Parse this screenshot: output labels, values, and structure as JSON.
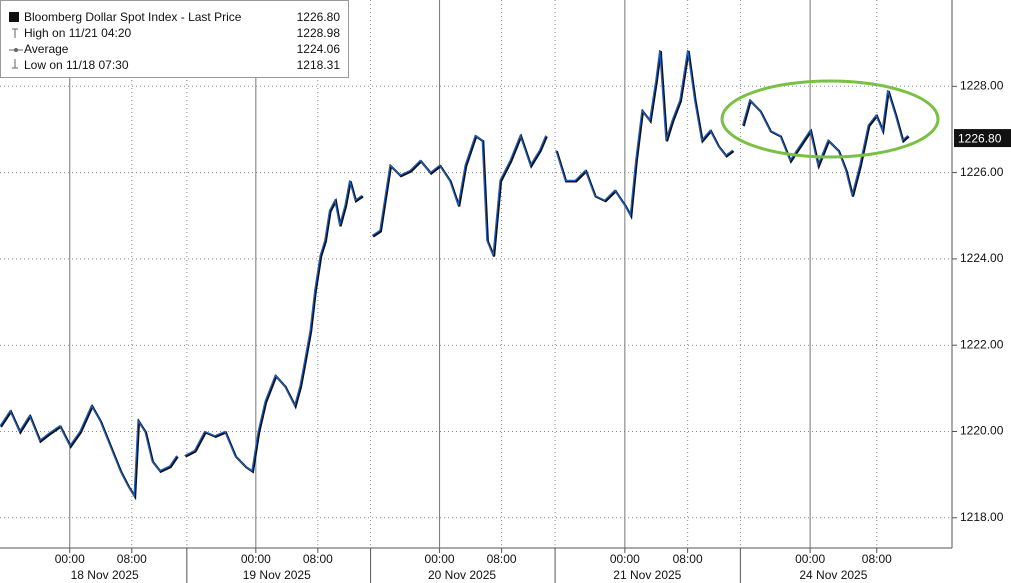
{
  "chart_data": {
    "type": "line",
    "legend_entries": {
      "names": [
        "Bloomberg Dollar Spot Index - Last Price",
        "High on 11/21 04:20",
        "Average",
        "Low on 11/18 07:30"
      ],
      "values": [
        1226.8,
        1228.98,
        1224.06,
        1218.31
      ],
      "value_labels": [
        "1226.80",
        "1228.98",
        "1224.06",
        "1218.31"
      ]
    },
    "x": [
      -9.0,
      -7.7,
      -6.5,
      -5.2,
      -3.9,
      -2.6,
      -1.3,
      0,
      1.3,
      2.8,
      3.9,
      5.2,
      6.5,
      7.5,
      8.3,
      8.8,
      9.7,
      10.6,
      11.6,
      12.9,
      13.8,
      14.5,
      14.8,
      16.1,
      17.4,
      18.7,
      20.0,
      21.3,
      22.6,
      23.5,
      24.3,
      25.2,
      26.5,
      27.7,
      29.0,
      29.7,
      30.3,
      31.0,
      31.6,
      32.3,
      32.9,
      33.5,
      34.2,
      34.8,
      35.5,
      36.1,
      36.8,
      37.7,
      38.4,
      39.0,
      40.0,
      41.3,
      42.6,
      43.9,
      45.2,
      46.5,
      47.7,
      49.0,
      50.1,
      51.0,
      52.3,
      53.2,
      53.8,
      54.6,
      55.5,
      56.8,
      58.1,
      59.4,
      60.6,
      61.4,
      62.6,
      62.7,
      63.9,
      65.2,
      66.5,
      67.7,
      69.0,
      70.3,
      71.6,
      72.3,
      73.0,
      73.8,
      74.8,
      75.6,
      76.1,
      76.9,
      77.7,
      78.7,
      79.7,
      80.6,
      81.5,
      82.6,
      83.6,
      84.6,
      85.5,
      86.5,
      86.8,
      87.7,
      89.0,
      90.3,
      91.6,
      92.9,
      94.2,
      95.5,
      96.5,
      97.8,
      99.1,
      100.1,
      100.9,
      101.9,
      103.0,
      104.0,
      104.8,
      105.5,
      106.5,
      107.4,
      108.1
    ],
    "series": [
      {
        "color": "#1f5fbf",
        "values": [
          1220.13,
          1220.48,
          1220.0,
          1220.37,
          1219.79,
          1219.97,
          1220.13,
          1219.67,
          1220.0,
          1220.6,
          1220.25,
          1219.67,
          1219.09,
          1218.74,
          1218.51,
          1220.25,
          1220.0,
          1219.32,
          1219.09,
          1219.2,
          1219.44,
          null,
          1219.44,
          1219.56,
          1220.0,
          1219.9,
          1220.0,
          1219.44,
          1219.2,
          1219.09,
          1220.0,
          1220.7,
          1221.3,
          1221.06,
          1220.6,
          1221.06,
          1221.64,
          1222.34,
          1223.27,
          1224.08,
          1224.43,
          1225.12,
          1225.36,
          1224.78,
          1225.24,
          1225.82,
          1225.36,
          1225.47,
          null,
          1224.54,
          1224.66,
          1226.17,
          1225.94,
          1226.05,
          1226.28,
          1226.0,
          1226.17,
          1225.82,
          1225.24,
          1226.17,
          1226.86,
          1226.75,
          1224.43,
          1224.08,
          1225.82,
          1226.28,
          1226.86,
          1226.17,
          1226.52,
          1226.86,
          null,
          1226.52,
          1225.82,
          1225.82,
          1226.05,
          1225.47,
          1225.36,
          1225.59,
          1225.24,
          1225.01,
          1226.28,
          1227.44,
          1227.21,
          1228.14,
          1228.84,
          1226.75,
          1227.21,
          1227.68,
          1228.84,
          1227.68,
          1226.75,
          1226.98,
          1226.63,
          1226.4,
          1226.52,
          null,
          1227.1,
          1227.68,
          1227.44,
          1226.98,
          1226.86,
          1226.28,
          1226.63,
          1226.98,
          1226.17,
          1226.75,
          1226.52,
          1226.05,
          1225.47,
          1226.17,
          1227.1,
          1227.33,
          1226.98,
          1227.91,
          1227.33,
          1226.75,
          1226.86
        ]
      }
    ],
    "xlim": [
      -9.0,
      113.8
    ],
    "xticks": [
      {
        "value": 0,
        "label": "00:00"
      },
      {
        "value": 8.0,
        "label": "08:00"
      },
      {
        "value": 24.0,
        "label": "00:00"
      },
      {
        "value": 32.0,
        "label": "08:00"
      },
      {
        "value": 47.7,
        "label": "00:00"
      },
      {
        "value": 55.7,
        "label": "08:00"
      },
      {
        "value": 71.6,
        "label": "00:00"
      },
      {
        "value": 79.7,
        "label": "08:00"
      },
      {
        "value": 95.5,
        "label": "00:00"
      },
      {
        "value": 104.1,
        "label": "08:00"
      }
    ],
    "x_day_labels": [
      {
        "value": 4.5,
        "label": "18 Nov 2025"
      },
      {
        "value": 26.7,
        "label": "19 Nov 2025"
      },
      {
        "value": 50.6,
        "label": "20 Nov 2025"
      },
      {
        "value": 74.5,
        "label": "21 Nov 2025"
      },
      {
        "value": 98.5,
        "label": "24 Nov 2025"
      }
    ],
    "x_day_breaks": [
      15.1,
      38.8,
      62.6,
      86.5
    ],
    "ylim": [
      1217.3,
      1230
    ],
    "yticks": [
      {
        "value": 1218,
        "label": "1218.00"
      },
      {
        "value": 1220,
        "label": "1220.00"
      },
      {
        "value": 1222,
        "label": "1222.00"
      },
      {
        "value": 1224,
        "label": "1224.00"
      },
      {
        "value": 1226,
        "label": "1226.00"
      },
      {
        "value": 1228,
        "label": "1228.00"
      }
    ],
    "grid": true
  }
}
